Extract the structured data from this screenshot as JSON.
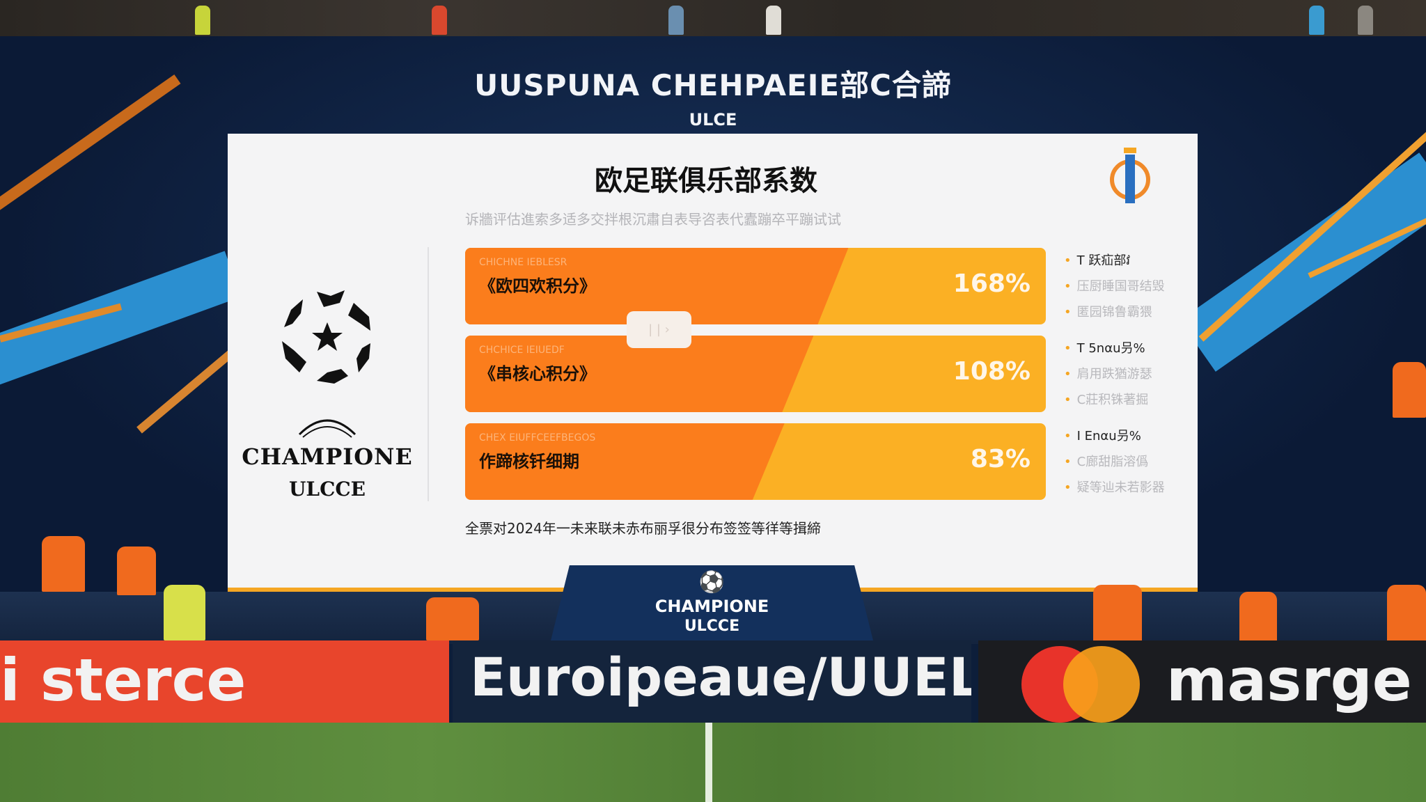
{
  "header": {
    "line1": "UUSPUNA CHEHPAEIE部C合諦",
    "line2": "ULCE"
  },
  "screen": {
    "title": "欧足联俱乐部系数",
    "subtitle": "诉牆评估進索多适多交拌根沉肅自表导咨表代蠹蹦卒平蹦试试",
    "logo": {
      "line1": "CHAMPIONE",
      "line2": "ULCCE",
      "crest": "UELE"
    },
    "bars": [
      {
        "caption": "CHICHNE IEBLESR",
        "label": "《欧四欢积分》",
        "value": "168%",
        "fill_fraction": 0.66
      },
      {
        "caption": "CHCHICE IEIUEDF",
        "label": "《串核心积分》",
        "value": "108%",
        "fill_fraction": 0.6
      },
      {
        "caption": "CHEX EIUFFCEEFBEGOS",
        "label": "作蹄核钎细期",
        "value": "83%",
        "fill_fraction": 0.55
      }
    ],
    "handle": "| | ›",
    "side_lists": [
      {
        "head": "T 跃疝部វ",
        "items": [
          "压厨睡国哥结毁",
          "匿园锦鲁霸猥"
        ]
      },
      {
        "head": "T 5nαu叧%",
        "items": [
          "肩用跌猶游瑟",
          "C莊积铢著掘"
        ]
      },
      {
        "head": "I Enαu叧%",
        "items": [
          "C廊甜脂溶僞",
          "疑等辿未若影器"
        ]
      }
    ],
    "footnote": "全票对2024年一未来联未赤布丽孚很分布签签等徉等揖締",
    "colors": {
      "orange": "#fb7d1c",
      "amber": "#fbb024",
      "navy": "#0b1a36"
    }
  },
  "pedestal": {
    "line1": "CHAMPIONE",
    "line2": "ULCCE"
  },
  "boards": [
    {
      "text": "i sterce",
      "color": "#e8452c"
    },
    {
      "text": "Euroipeaue/UUEL",
      "color": "#14243c"
    },
    {
      "text": "masrge",
      "color": "#1b1c20"
    }
  ]
}
